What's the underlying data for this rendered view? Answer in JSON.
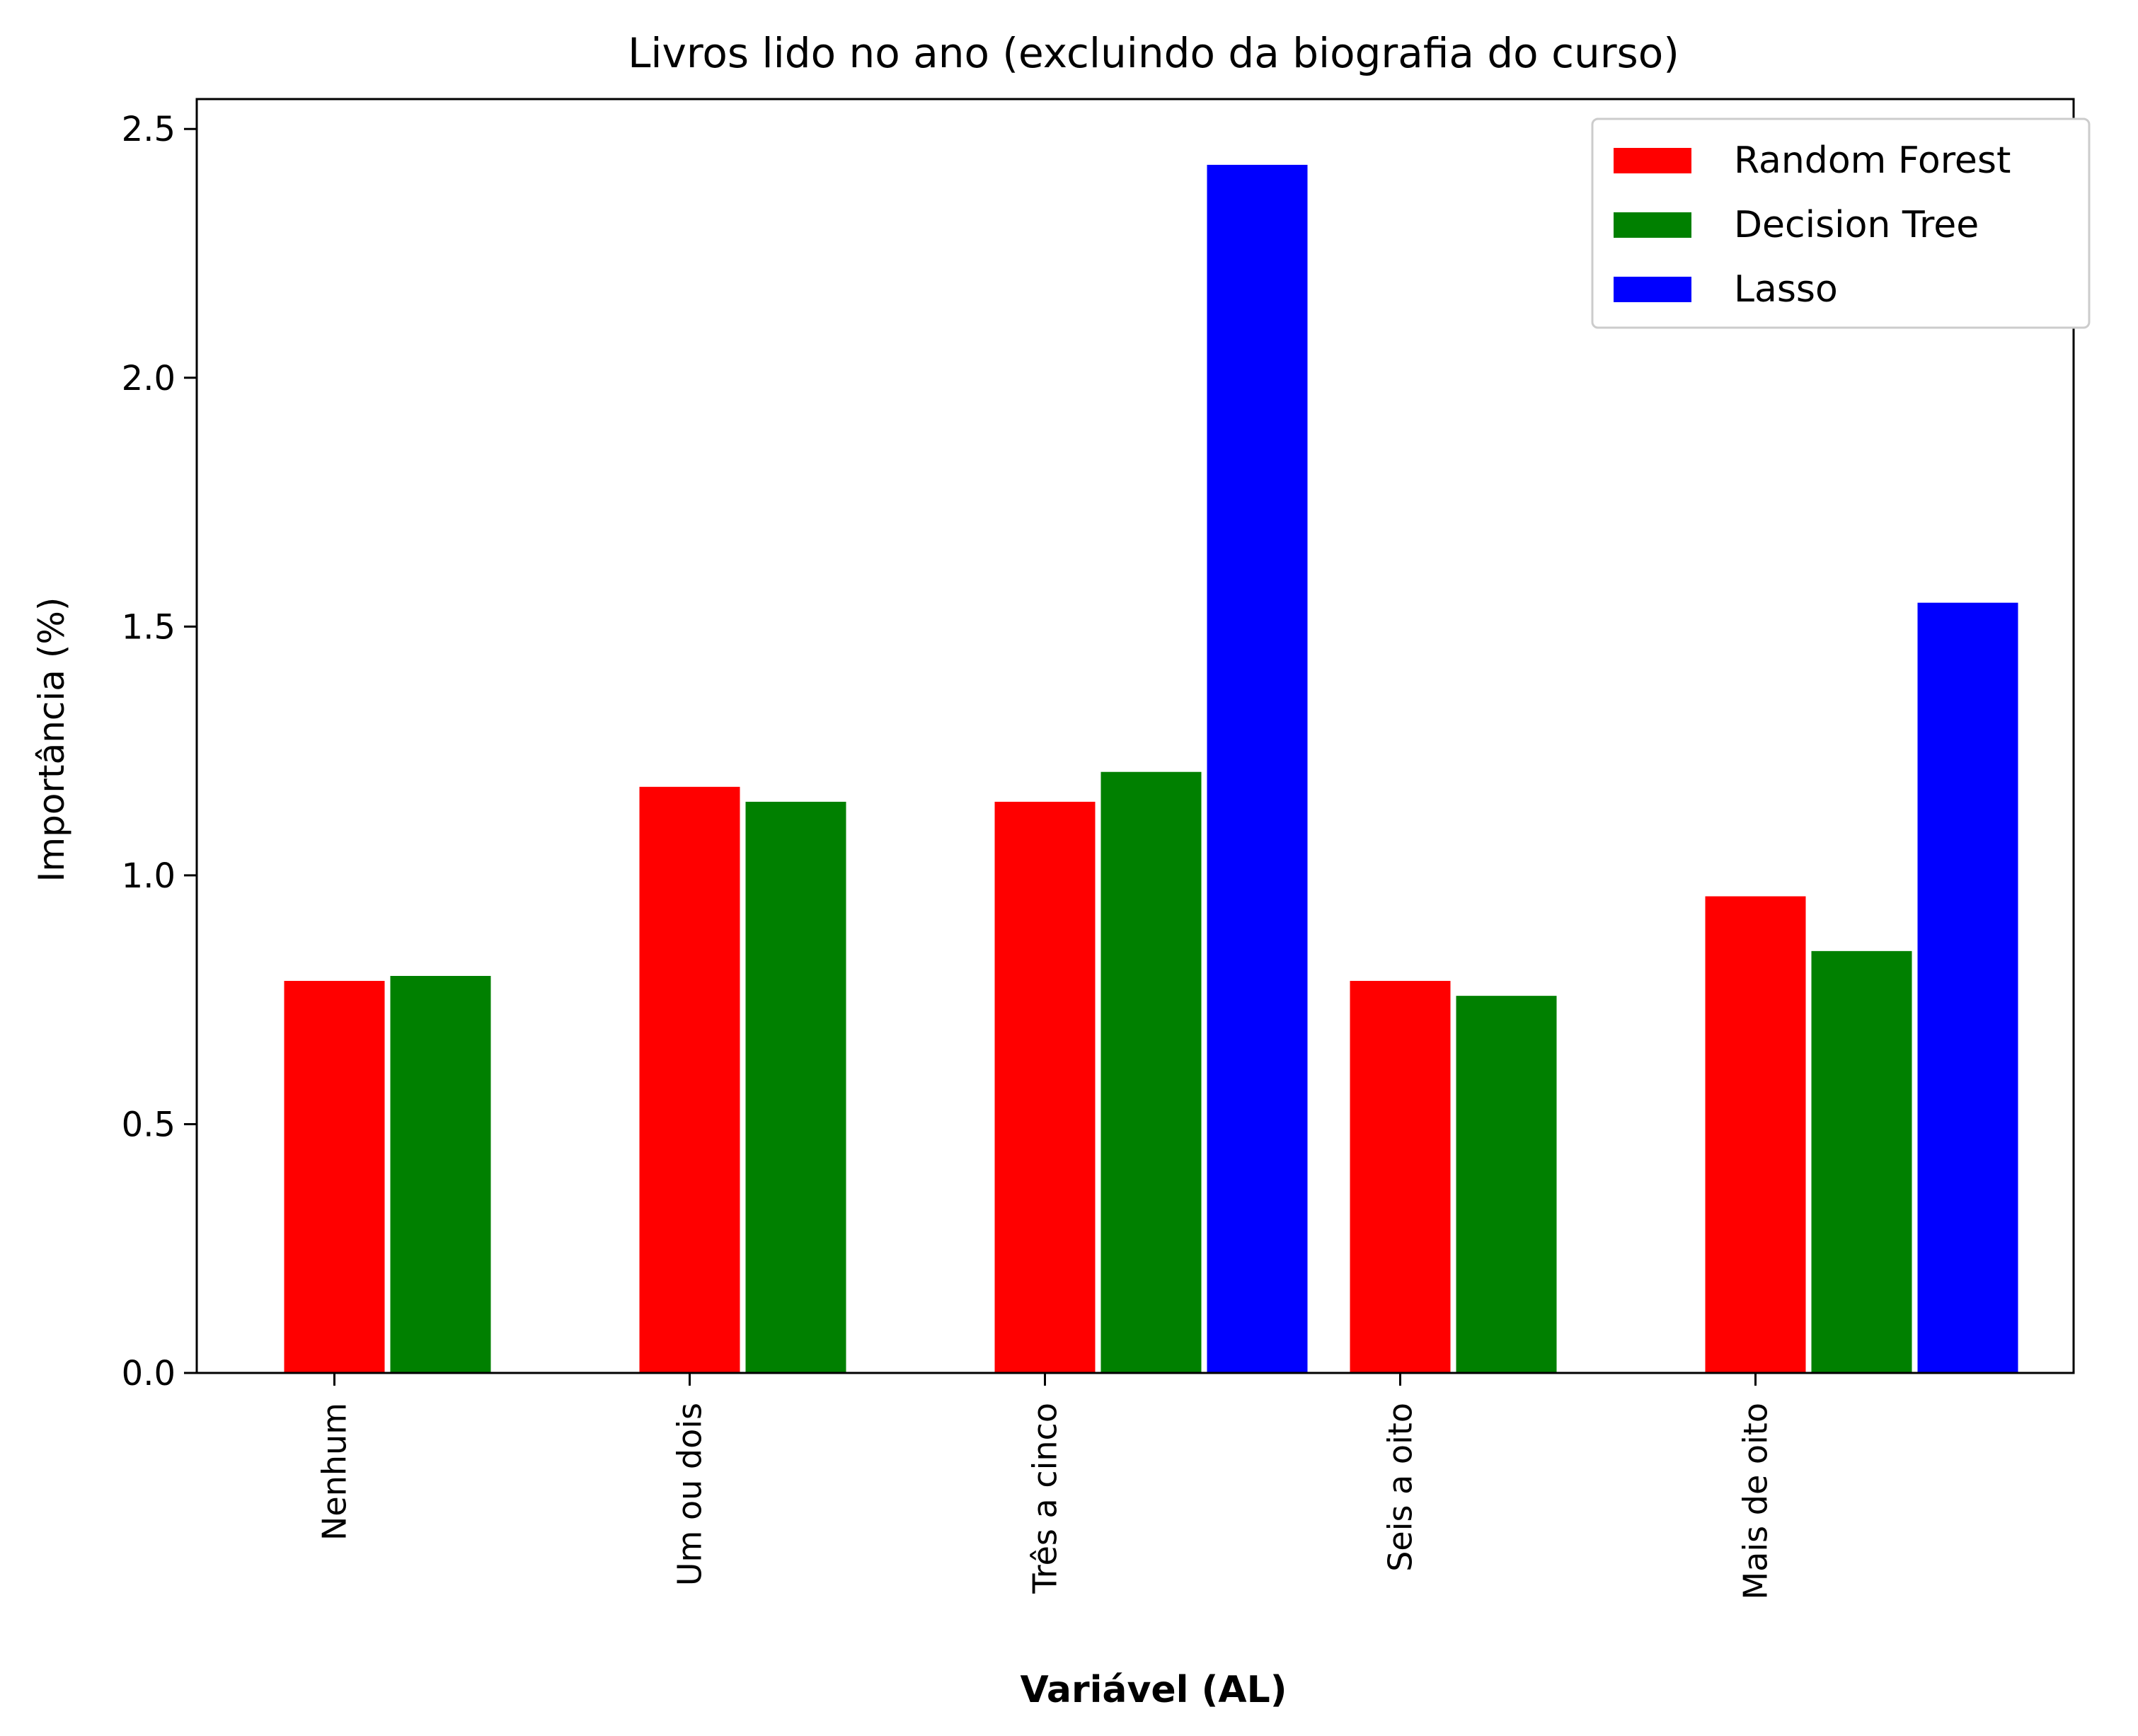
{
  "chart_data": {
    "type": "bar",
    "title": "Livros lido no ano (excluindo da biografia do curso)",
    "xlabel": "Variável (AL)",
    "ylabel": "Importância (%)",
    "categories": [
      "Nenhum",
      "Um ou dois",
      "Três a cinco",
      "Seis a oito",
      "Mais de oito"
    ],
    "series": [
      {
        "name": "Random Forest",
        "color": "#ff0000",
        "values": [
          0.79,
          1.18,
          1.15,
          0.79,
          0.96
        ]
      },
      {
        "name": "Decision Tree",
        "color": "#008000",
        "values": [
          0.8,
          1.15,
          1.21,
          0.76,
          0.85
        ]
      },
      {
        "name": "Lasso",
        "color": "#0000ff",
        "values": [
          0.0,
          0.0,
          2.43,
          0.0,
          1.55
        ]
      }
    ],
    "ylim": [
      0,
      2.56
    ],
    "yticks": [
      "0.0",
      "0.5",
      "1.0",
      "1.5",
      "2.0",
      "2.5"
    ],
    "grid": false,
    "legend_position": "top-right"
  }
}
